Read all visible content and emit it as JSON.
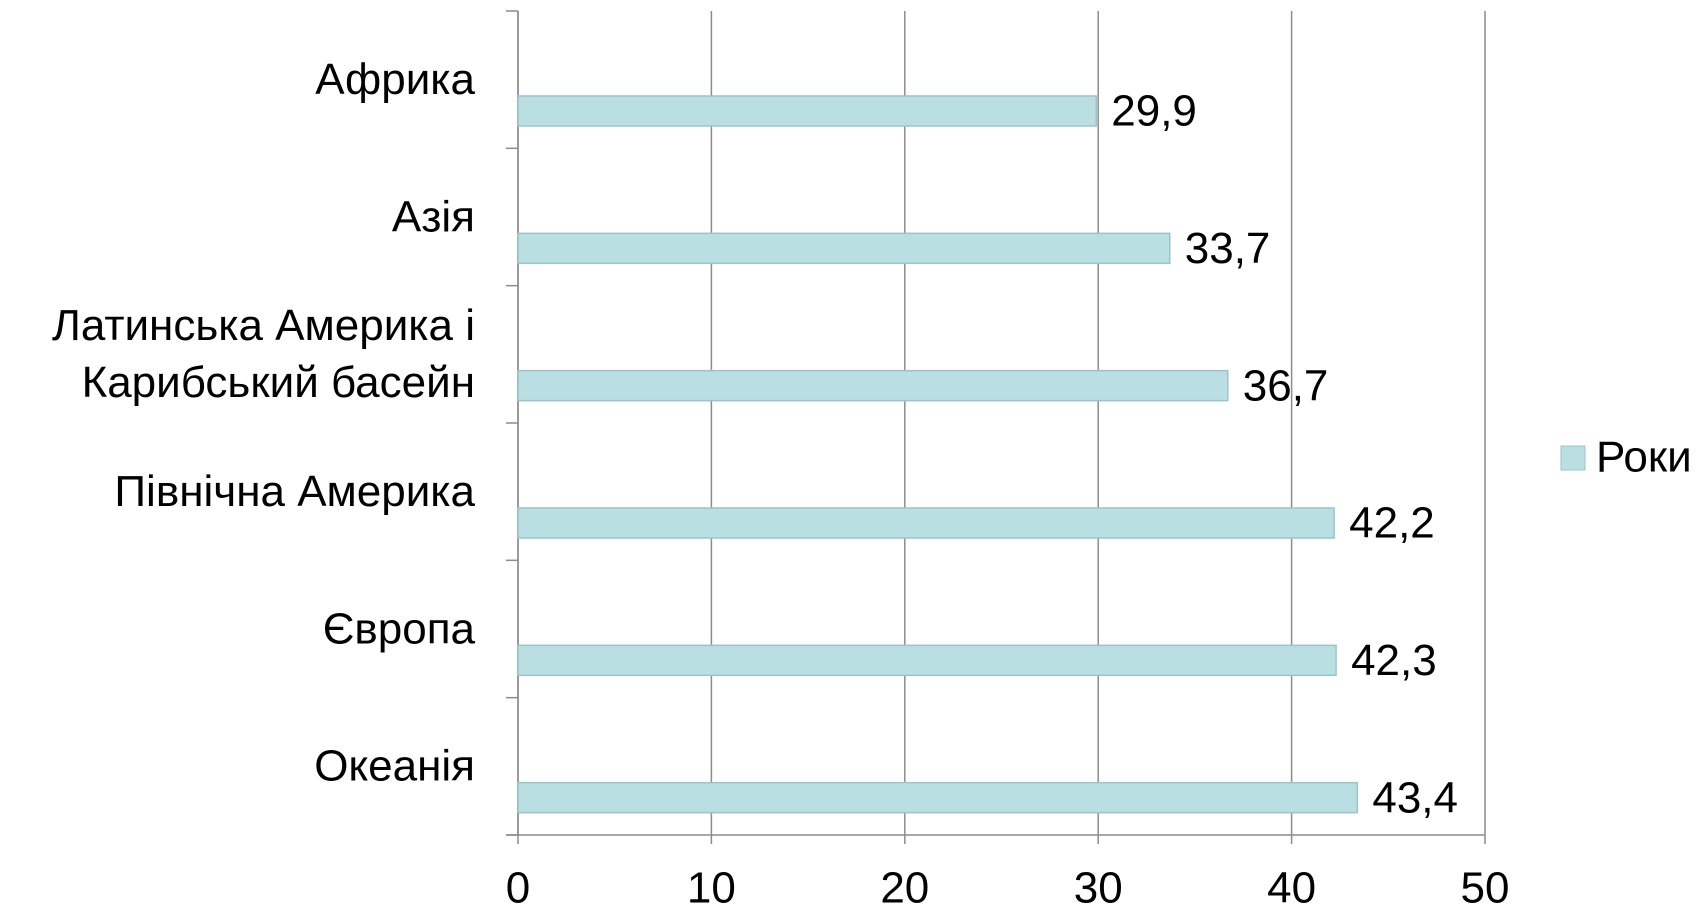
{
  "chart_data": {
    "type": "barh",
    "categories": [
      "Африка",
      "Азія",
      "Латинська Америка і\nКарибський басейн",
      "Північна Америка",
      "Європа",
      "Океанія"
    ],
    "series": [
      {
        "name": "Роки",
        "color": "#b9dfe3",
        "values": [
          29.9,
          33.7,
          36.7,
          42.2,
          42.3,
          43.4
        ],
        "value_labels": [
          "29,9",
          "33,7",
          "36,7",
          "42,2",
          "42,3",
          "43,4"
        ]
      }
    ],
    "xlim": [
      0,
      50
    ],
    "xticks": [
      0,
      10,
      20,
      30,
      40,
      50
    ],
    "grid": true,
    "legend": "right"
  }
}
